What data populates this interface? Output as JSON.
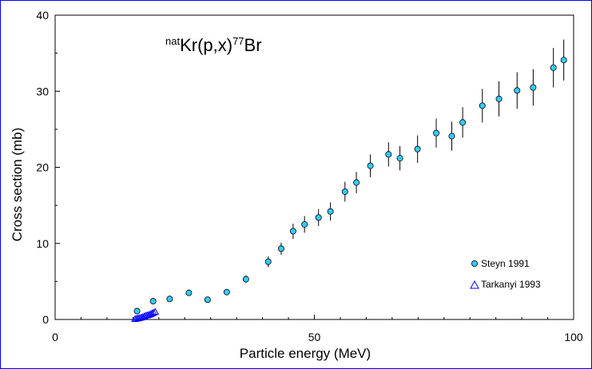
{
  "chart_data": {
    "type": "scatter",
    "title": "",
    "annotation": {
      "prefix_sup": "nat",
      "body1": "Kr(p,x)",
      "sup2": "77",
      "body2": "Br"
    },
    "xlabel": "Particle energy (MeV)",
    "ylabel": "Cross section (mb)",
    "xlim": [
      0,
      100
    ],
    "ylim": [
      0,
      40
    ],
    "x_major_ticks": [
      0,
      50,
      100
    ],
    "x_tick_labels": [
      "0",
      "50",
      "100"
    ],
    "x_minor_step": 5,
    "y_major_ticks": [
      0,
      10,
      20,
      30,
      40
    ],
    "y_tick_labels": [
      "0",
      "10",
      "20",
      "30",
      "40"
    ],
    "y_minor_step": 5,
    "grid": false,
    "legend_position": "bottom-right",
    "series": [
      {
        "name": "Steyn 1991",
        "marker": "circle",
        "color": "#33ccff",
        "x": [
          15.8,
          18.9,
          22.1,
          25.8,
          29.4,
          33.1,
          36.8,
          41.1,
          43.6,
          45.9,
          48.1,
          50.8,
          53.1,
          55.9,
          58.1,
          60.8,
          64.3,
          66.5,
          69.9,
          73.5,
          76.5,
          78.6,
          82.4,
          85.6,
          89.1,
          92.2,
          96.1,
          98.1
        ],
        "y": [
          1.1,
          2.4,
          2.7,
          3.5,
          2.6,
          3.6,
          5.3,
          7.6,
          9.3,
          11.6,
          12.5,
          13.4,
          14.2,
          16.8,
          18.0,
          20.2,
          21.7,
          21.2,
          22.4,
          24.5,
          24.1,
          25.9,
          28.1,
          29.0,
          30.1,
          30.5,
          33.1,
          34.1
        ],
        "yerr": [
          0.3,
          0.3,
          0.3,
          0.4,
          0.3,
          0.4,
          0.5,
          0.7,
          0.8,
          1.0,
          1.1,
          1.1,
          1.2,
          1.3,
          1.4,
          1.5,
          1.6,
          1.6,
          1.8,
          1.9,
          1.9,
          2.0,
          2.2,
          2.3,
          2.4,
          2.4,
          2.6,
          2.7
        ]
      },
      {
        "name": "Tarkanyi 1993",
        "marker": "open-triangle",
        "color": "#0000ff",
        "x": [
          15.4,
          15.7,
          16.0,
          16.3,
          16.6,
          16.9,
          17.2,
          17.5,
          17.8,
          18.1,
          18.4,
          18.7,
          19.0,
          19.3
        ],
        "y": [
          0.05,
          0.1,
          0.15,
          0.2,
          0.25,
          0.3,
          0.4,
          0.5,
          0.55,
          0.6,
          0.7,
          0.8,
          0.9,
          1.0
        ]
      }
    ]
  }
}
